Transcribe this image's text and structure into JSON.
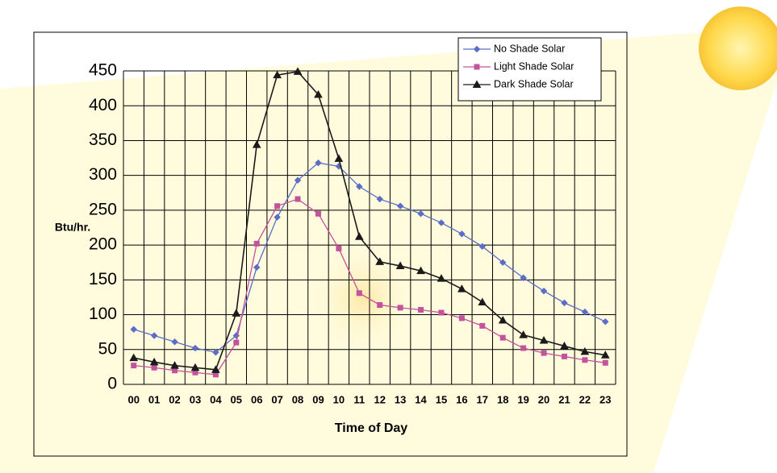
{
  "chart_data": {
    "type": "line",
    "x_label": "Time of Day",
    "y_label": "Btu/hr.",
    "categories": [
      "00",
      "01",
      "02",
      "03",
      "04",
      "05",
      "06",
      "07",
      "08",
      "09",
      "10",
      "11",
      "12",
      "13",
      "14",
      "15",
      "16",
      "17",
      "18",
      "19",
      "20",
      "21",
      "22",
      "23"
    ],
    "series": [
      {
        "name": "No Shade Solar",
        "color": "#5a6dc8",
        "marker": "diamond",
        "values": [
          79,
          70,
          61,
          52,
          46,
          70,
          168,
          240,
          293,
          318,
          313,
          284,
          266,
          256,
          245,
          232,
          216,
          198,
          175,
          153,
          134,
          117,
          104,
          90
        ]
      },
      {
        "name": "Light Shade Solar",
        "color": "#c2539c",
        "marker": "square",
        "values": [
          27,
          24,
          20,
          17,
          14,
          60,
          202,
          256,
          266,
          245,
          195,
          131,
          114,
          110,
          107,
          103,
          95,
          84,
          67,
          52,
          45,
          40,
          35,
          31
        ]
      },
      {
        "name": "Dark Shade Solar",
        "color": "#1a1a1a",
        "marker": "triangle",
        "values": [
          38,
          32,
          27,
          24,
          21,
          102,
          344,
          444,
          449,
          416,
          324,
          212,
          176,
          170,
          163,
          152,
          137,
          118,
          92,
          71,
          63,
          55,
          47,
          42
        ]
      }
    ],
    "ylim": [
      0,
      450
    ],
    "yticks": [
      0,
      50,
      100,
      150,
      200,
      250,
      300,
      350,
      400,
      450
    ],
    "grid": true,
    "legend": "upper right"
  }
}
